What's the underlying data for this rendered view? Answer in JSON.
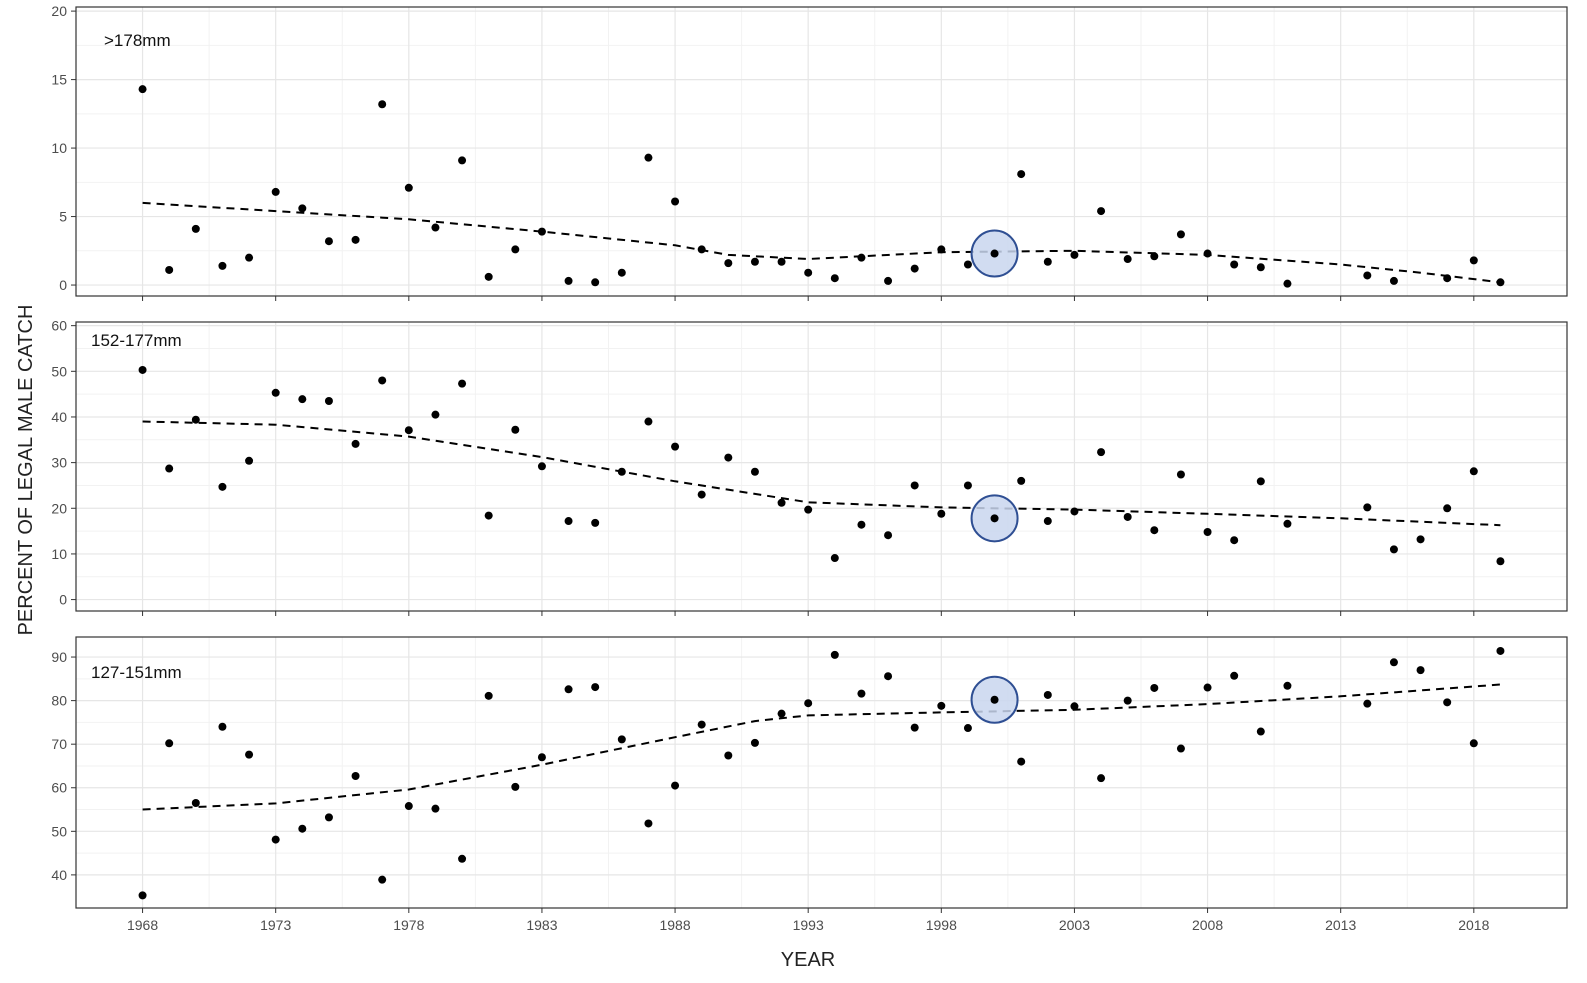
{
  "colors": {
    "panel_border": "#333333",
    "grid_major": "#e6e6e6",
    "grid_minor": "#f2f2f2",
    "points": "#000000",
    "trend": "#000000",
    "highlight_fill": "#c9d6ee",
    "highlight_stroke": "#2f4f93"
  },
  "chart_data": {
    "type": "scatter",
    "xlabel": "YEAR",
    "ylabel": "PERCENT OF LEGAL MALE CATCH",
    "xlim": [
      1965.5,
      2021.5
    ],
    "x_ticks": [
      1968,
      1973,
      1978,
      1983,
      1988,
      1993,
      1998,
      2003,
      2008,
      2013,
      2018
    ],
    "grid": true,
    "highlight_year": 2000,
    "panels": [
      {
        "label": ">178mm",
        "ylim": [
          -0.8,
          20.3
        ],
        "y_ticks": [
          0,
          5,
          10,
          15,
          20
        ],
        "points": [
          [
            1968,
            14.3
          ],
          [
            1969,
            1.1
          ],
          [
            1970,
            4.1
          ],
          [
            1971,
            1.4
          ],
          [
            1972,
            2.0
          ],
          [
            1973,
            6.8
          ],
          [
            1974,
            5.6
          ],
          [
            1975,
            3.2
          ],
          [
            1976,
            3.3
          ],
          [
            1977,
            13.2
          ],
          [
            1978,
            7.1
          ],
          [
            1979,
            4.2
          ],
          [
            1980,
            9.1
          ],
          [
            1981,
            0.6
          ],
          [
            1982,
            2.6
          ],
          [
            1983,
            3.9
          ],
          [
            1984,
            0.3
          ],
          [
            1985,
            0.2
          ],
          [
            1986,
            0.9
          ],
          [
            1987,
            9.3
          ],
          [
            1988,
            6.1
          ],
          [
            1989,
            2.6
          ],
          [
            1990,
            1.6
          ],
          [
            1991,
            1.7
          ],
          [
            1992,
            1.7
          ],
          [
            1993,
            0.9
          ],
          [
            1994,
            0.5
          ],
          [
            1995,
            2.0
          ],
          [
            1996,
            0.3
          ],
          [
            1997,
            1.2
          ],
          [
            1998,
            2.6
          ],
          [
            1999,
            1.5
          ],
          [
            2000,
            2.3
          ],
          [
            2001,
            8.1
          ],
          [
            2002,
            1.7
          ],
          [
            2003,
            2.2
          ],
          [
            2004,
            5.4
          ],
          [
            2005,
            1.9
          ],
          [
            2006,
            2.1
          ],
          [
            2007,
            3.7
          ],
          [
            2008,
            2.3
          ],
          [
            2009,
            1.5
          ],
          [
            2010,
            1.3
          ],
          [
            2011,
            0.1
          ],
          [
            2014,
            0.7
          ],
          [
            2015,
            0.3
          ],
          [
            2017,
            0.5
          ],
          [
            2018,
            1.8
          ],
          [
            2019,
            0.2
          ]
        ],
        "trend": [
          [
            1968,
            6.0
          ],
          [
            1973,
            5.4
          ],
          [
            1978,
            4.8
          ],
          [
            1983,
            3.9
          ],
          [
            1988,
            2.9
          ],
          [
            1990,
            2.2
          ],
          [
            1993,
            1.9
          ],
          [
            1998,
            2.4
          ],
          [
            2003,
            2.5
          ],
          [
            2008,
            2.2
          ],
          [
            2013,
            1.5
          ],
          [
            2016,
            0.9
          ],
          [
            2019,
            0.2
          ]
        ]
      },
      {
        "label": "152-177mm",
        "ylim": [
          -2.5,
          60.8
        ],
        "y_ticks": [
          0,
          10,
          20,
          30,
          40,
          50,
          60
        ],
        "points": [
          [
            1968,
            50.3
          ],
          [
            1969,
            28.7
          ],
          [
            1970,
            39.4
          ],
          [
            1971,
            24.7
          ],
          [
            1972,
            30.4
          ],
          [
            1973,
            45.3
          ],
          [
            1974,
            43.9
          ],
          [
            1975,
            43.5
          ],
          [
            1976,
            34.1
          ],
          [
            1977,
            48.0
          ],
          [
            1978,
            37.1
          ],
          [
            1979,
            40.5
          ],
          [
            1980,
            47.3
          ],
          [
            1981,
            18.4
          ],
          [
            1982,
            37.2
          ],
          [
            1983,
            29.2
          ],
          [
            1984,
            17.2
          ],
          [
            1985,
            16.8
          ],
          [
            1986,
            28.0
          ],
          [
            1987,
            39.0
          ],
          [
            1988,
            33.5
          ],
          [
            1989,
            23.0
          ],
          [
            1990,
            31.1
          ],
          [
            1991,
            28.0
          ],
          [
            1992,
            21.2
          ],
          [
            1993,
            19.7
          ],
          [
            1994,
            9.1
          ],
          [
            1995,
            16.4
          ],
          [
            1996,
            14.1
          ],
          [
            1997,
            25.0
          ],
          [
            1998,
            18.8
          ],
          [
            1999,
            25.0
          ],
          [
            2000,
            17.8
          ],
          [
            2001,
            26.0
          ],
          [
            2002,
            17.2
          ],
          [
            2003,
            19.3
          ],
          [
            2004,
            32.3
          ],
          [
            2005,
            18.1
          ],
          [
            2006,
            15.2
          ],
          [
            2007,
            27.4
          ],
          [
            2008,
            14.8
          ],
          [
            2009,
            13.0
          ],
          [
            2010,
            25.9
          ],
          [
            2011,
            16.6
          ],
          [
            2014,
            20.2
          ],
          [
            2015,
            11.0
          ],
          [
            2016,
            13.2
          ],
          [
            2017,
            20.0
          ],
          [
            2018,
            28.1
          ],
          [
            2019,
            8.4
          ]
        ],
        "trend": [
          [
            1968,
            39.0
          ],
          [
            1973,
            38.3
          ],
          [
            1978,
            35.7
          ],
          [
            1983,
            31.2
          ],
          [
            1988,
            25.9
          ],
          [
            1993,
            21.3
          ],
          [
            1998,
            20.2
          ],
          [
            2003,
            19.7
          ],
          [
            2008,
            18.8
          ],
          [
            2013,
            17.8
          ],
          [
            2019,
            16.3
          ]
        ]
      },
      {
        "label": "127-151mm",
        "ylim": [
          32.4,
          94.6
        ],
        "y_ticks": [
          40,
          50,
          60,
          70,
          80,
          90
        ],
        "points": [
          [
            1968,
            35.3
          ],
          [
            1969,
            70.2
          ],
          [
            1970,
            56.5
          ],
          [
            1971,
            74.0
          ],
          [
            1972,
            67.6
          ],
          [
            1973,
            48.1
          ],
          [
            1974,
            50.6
          ],
          [
            1975,
            53.2
          ],
          [
            1976,
            62.7
          ],
          [
            1977,
            38.9
          ],
          [
            1978,
            55.8
          ],
          [
            1979,
            55.2
          ],
          [
            1980,
            43.7
          ],
          [
            1981,
            81.1
          ],
          [
            1982,
            60.2
          ],
          [
            1983,
            67.0
          ],
          [
            1984,
            82.6
          ],
          [
            1985,
            83.1
          ],
          [
            1986,
            71.1
          ],
          [
            1987,
            51.8
          ],
          [
            1988,
            60.5
          ],
          [
            1989,
            74.5
          ],
          [
            1990,
            67.4
          ],
          [
            1991,
            70.3
          ],
          [
            1992,
            77.0
          ],
          [
            1993,
            79.4
          ],
          [
            1994,
            90.5
          ],
          [
            1995,
            81.6
          ],
          [
            1996,
            85.6
          ],
          [
            1997,
            73.8
          ],
          [
            1998,
            78.8
          ],
          [
            1999,
            73.7
          ],
          [
            2000,
            80.2
          ],
          [
            2001,
            66.0
          ],
          [
            2002,
            81.3
          ],
          [
            2003,
            78.7
          ],
          [
            2004,
            62.2
          ],
          [
            2005,
            80.0
          ],
          [
            2006,
            82.9
          ],
          [
            2007,
            69.0
          ],
          [
            2008,
            83.0
          ],
          [
            2009,
            85.7
          ],
          [
            2010,
            72.9
          ],
          [
            2011,
            83.4
          ],
          [
            2014,
            79.3
          ],
          [
            2015,
            88.8
          ],
          [
            2016,
            87.0
          ],
          [
            2017,
            79.6
          ],
          [
            2018,
            70.2
          ],
          [
            2019,
            91.4
          ]
        ],
        "trend": [
          [
            1968,
            55.0
          ],
          [
            1973,
            56.4
          ],
          [
            1978,
            59.6
          ],
          [
            1983,
            65.3
          ],
          [
            1988,
            71.6
          ],
          [
            1991,
            75.3
          ],
          [
            1993,
            76.6
          ],
          [
            1998,
            77.3
          ],
          [
            2003,
            77.9
          ],
          [
            2008,
            79.2
          ],
          [
            2013,
            81.0
          ],
          [
            2019,
            83.7
          ]
        ]
      }
    ]
  }
}
